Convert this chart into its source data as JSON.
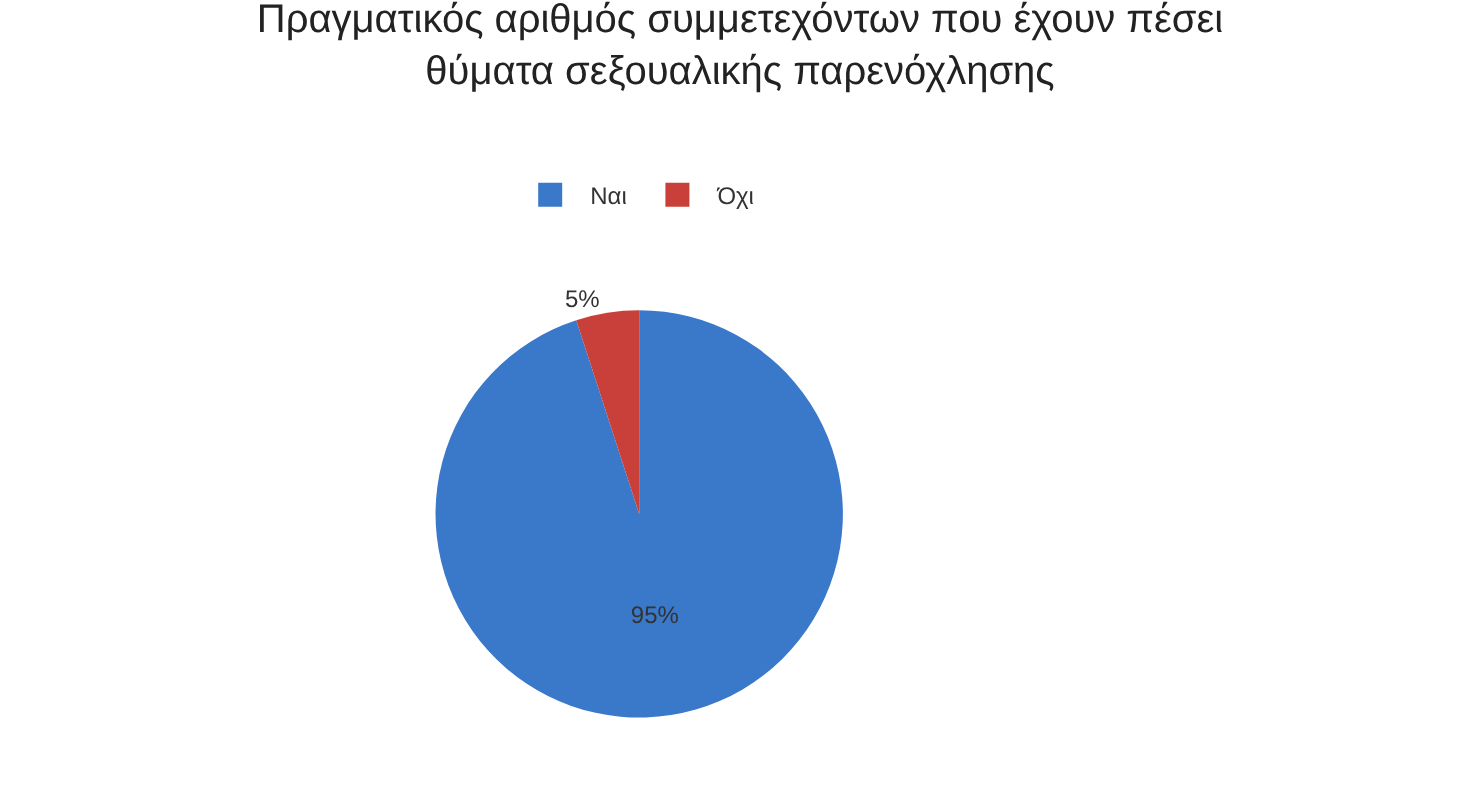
{
  "chart_data": {
    "type": "pie",
    "title": "Πραγματικός αριθμός συμμετεχόντων που έχουν πέσει\nθύματα σεξουαλικής παρενόχλησης",
    "categories": [
      "Ναι",
      "Όχι"
    ],
    "values": [
      95,
      5
    ],
    "colors": [
      "#3a78c9",
      "#c9403a"
    ],
    "value_labels": [
      "95%",
      "5%"
    ],
    "legend": "top"
  }
}
